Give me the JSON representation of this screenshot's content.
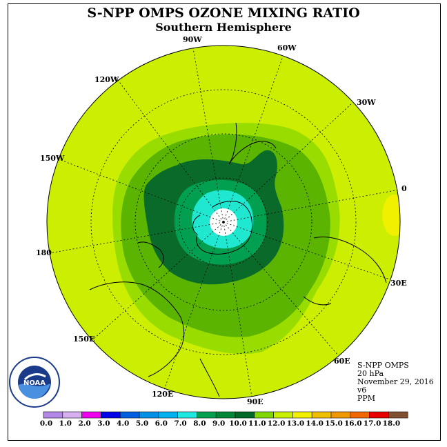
{
  "title": "S-NPP OMPS OZONE MIXING RATIO",
  "subtitle": "Southern Hemisphere",
  "longitude_labels": [
    "90W",
    "60W",
    "30W",
    "0",
    "30E",
    "60E",
    "90E",
    "120E",
    "150E",
    "180",
    "150W",
    "120W"
  ],
  "info": {
    "instrument": "S-NPP OMPS",
    "level": "20 hPa",
    "date": "November 29, 2016",
    "version": "v6",
    "units": "PPM"
  },
  "logo": {
    "text": "NOAA"
  },
  "colorbar": {
    "ticks": [
      "0.0",
      "1.0",
      "2.0",
      "3.0",
      "4.0",
      "5.0",
      "6.0",
      "7.0",
      "8.0",
      "9.0",
      "10.0",
      "11.0",
      "12.0",
      "13.0",
      "14.0",
      "15.0",
      "16.0",
      "17.0",
      "18.0"
    ],
    "colors": [
      "#b388e8",
      "#d8b0f0",
      "#ee00ee",
      "#0000e8",
      "#0060e0",
      "#0090e8",
      "#00b0f0",
      "#20e8e0",
      "#00a050",
      "#008838",
      "#006828",
      "#80d800",
      "#c8ee00",
      "#f0f000",
      "#f0c000",
      "#f09800",
      "#f06800",
      "#e80000",
      "#805030"
    ]
  },
  "colors": {
    "background_field": "#ccee00",
    "band_11": "#99dd00",
    "band_10": "#5ab400",
    "band_9": "#0a6a2a",
    "band_8": "#00a050",
    "band_7": "#20e8d0",
    "band_low": "#ffffff",
    "warm_patch": "#f0f000"
  }
}
